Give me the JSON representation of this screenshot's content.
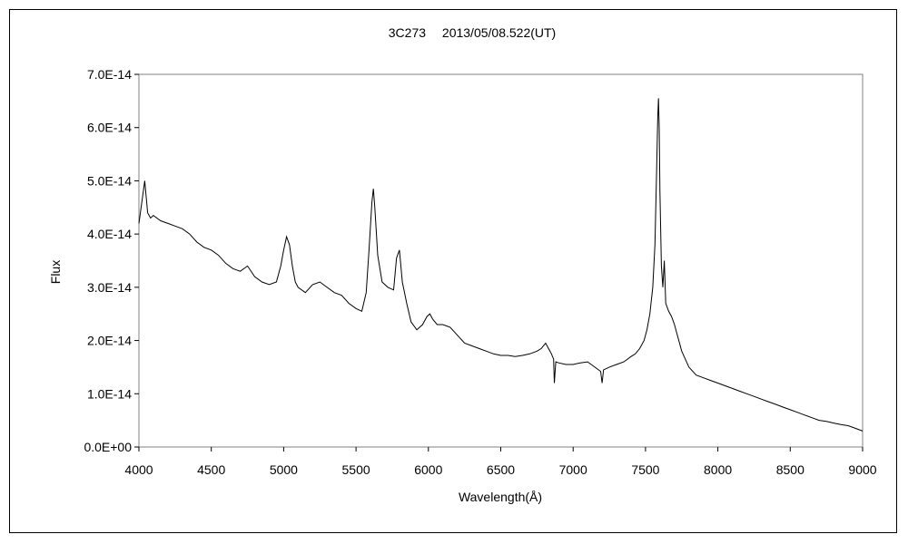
{
  "chart_data": {
    "type": "line",
    "title": "3C273　 2013/05/08.522(UT)",
    "xlabel": "Wavelength(Å)",
    "ylabel": "Flux",
    "xlim": [
      4000,
      9000
    ],
    "ylim": [
      0,
      7e-14
    ],
    "x_ticks": [
      4000,
      4500,
      5000,
      5500,
      6000,
      6500,
      7000,
      7500,
      8000,
      8500,
      9000
    ],
    "x_tick_labels": [
      "4000",
      "4500",
      "5000",
      "5500",
      "6000",
      "6500",
      "7000",
      "7500",
      "8000",
      "8500",
      "9000"
    ],
    "y_ticks": [
      0,
      1e-14,
      2e-14,
      3e-14,
      4e-14,
      5e-14,
      6e-14,
      7e-14
    ],
    "y_tick_labels": [
      "0.0E+00",
      "1.0E-14",
      "2.0E-14",
      "3.0E-14",
      "4.0E-14",
      "5.0E-14",
      "6.0E-14",
      "7.0E-14"
    ],
    "grid": false,
    "legend": "none",
    "line_color": "#000000",
    "series": [
      {
        "x": [
          4000,
          4020,
          4040,
          4060,
          4080,
          4100,
          4150,
          4200,
          4250,
          4300,
          4350,
          4400,
          4450,
          4500,
          4550,
          4600,
          4650,
          4700,
          4750,
          4800,
          4850,
          4900,
          4950,
          4980,
          5000,
          5020,
          5040,
          5060,
          5080,
          5100,
          5150,
          5200,
          5250,
          5300,
          5350,
          5400,
          5450,
          5500,
          5540,
          5570,
          5590,
          5610,
          5620,
          5630,
          5650,
          5680,
          5720,
          5760,
          5780,
          5800,
          5820,
          5850,
          5880,
          5920,
          5960,
          5990,
          6010,
          6030,
          6060,
          6100,
          6150,
          6200,
          6250,
          6300,
          6350,
          6400,
          6450,
          6500,
          6550,
          6600,
          6650,
          6700,
          6750,
          6780,
          6810,
          6830,
          6850,
          6865,
          6870,
          6880,
          6900,
          6950,
          7000,
          7050,
          7100,
          7150,
          7190,
          7200,
          7210,
          7250,
          7300,
          7350,
          7400,
          7430,
          7460,
          7490,
          7510,
          7530,
          7550,
          7565,
          7575,
          7585,
          7590,
          7595,
          7600,
          7610,
          7620,
          7630,
          7640,
          7660,
          7680,
          7700,
          7720,
          7750,
          7800,
          7850,
          7900,
          7950,
          8000,
          8050,
          8100,
          8150,
          8200,
          8250,
          8300,
          8350,
          8400,
          8450,
          8500,
          8550,
          8600,
          8650,
          8700,
          8750,
          8800,
          8850,
          8900,
          8950,
          9000
        ],
        "y": [
          4.2e-14,
          4.6e-14,
          5e-14,
          4.4e-14,
          4.3e-14,
          4.35e-14,
          4.25e-14,
          4.2e-14,
          4.15e-14,
          4.1e-14,
          4e-14,
          3.85e-14,
          3.75e-14,
          3.7e-14,
          3.6e-14,
          3.45e-14,
          3.35e-14,
          3.3e-14,
          3.4e-14,
          3.2e-14,
          3.1e-14,
          3.05e-14,
          3.1e-14,
          3.4e-14,
          3.7e-14,
          3.95e-14,
          3.8e-14,
          3.4e-14,
          3.1e-14,
          3e-14,
          2.9e-14,
          3.05e-14,
          3.1e-14,
          3e-14,
          2.9e-14,
          2.85e-14,
          2.7e-14,
          2.6e-14,
          2.55e-14,
          2.9e-14,
          3.7e-14,
          4.6e-14,
          4.85e-14,
          4.5e-14,
          3.6e-14,
          3.1e-14,
          3e-14,
          2.95e-14,
          3.55e-14,
          3.7e-14,
          3.1e-14,
          2.7e-14,
          2.35e-14,
          2.2e-14,
          2.3e-14,
          2.45e-14,
          2.5e-14,
          2.4e-14,
          2.3e-14,
          2.3e-14,
          2.25e-14,
          2.1e-14,
          1.95e-14,
          1.9e-14,
          1.85e-14,
          1.8e-14,
          1.75e-14,
          1.72e-14,
          1.72e-14,
          1.7e-14,
          1.72e-14,
          1.75e-14,
          1.8e-14,
          1.85e-14,
          1.95e-14,
          1.85e-14,
          1.75e-14,
          1.65e-14,
          1.2e-14,
          1.6e-14,
          1.58e-14,
          1.55e-14,
          1.55e-14,
          1.58e-14,
          1.6e-14,
          1.5e-14,
          1.42e-14,
          1.2e-14,
          1.45e-14,
          1.5e-14,
          1.55e-14,
          1.6e-14,
          1.7e-14,
          1.75e-14,
          1.85e-14,
          2e-14,
          2.2e-14,
          2.5e-14,
          3e-14,
          3.8e-14,
          5e-14,
          6.2e-14,
          6.55e-14,
          6e-14,
          4.8e-14,
          3.4e-14,
          3e-14,
          3.5e-14,
          2.7e-14,
          2.55e-14,
          2.45e-14,
          2.3e-14,
          2.1e-14,
          1.8e-14,
          1.5e-14,
          1.35e-14,
          1.3e-14,
          1.25e-14,
          1.2e-14,
          1.15e-14,
          1.1e-14,
          1.05e-14,
          1e-14,
          9.5e-15,
          9e-15,
          8.5e-15,
          8e-15,
          7.5e-15,
          7e-15,
          6.5e-15,
          6e-15,
          5.5e-15,
          5e-15,
          4.8e-15,
          4.5e-15,
          4.2e-15,
          4e-15,
          3.5e-15,
          3e-15
        ]
      }
    ]
  }
}
